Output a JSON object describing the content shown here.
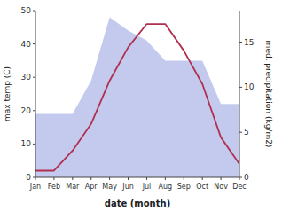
{
  "chart_data": {
    "type": "line",
    "categories": [
      "Jan",
      "Feb",
      "Mar",
      "Apr",
      "May",
      "Jun",
      "Jul",
      "Aug",
      "Sep",
      "Oct",
      "Nov",
      "Dec"
    ],
    "series": [
      {
        "type": "area",
        "color": "#b0b8e8",
        "values": [
          19,
          19,
          19,
          29,
          48,
          44,
          41,
          35,
          35,
          35,
          22,
          22
        ]
      },
      {
        "type": "line",
        "color": "#b03050",
        "values": [
          2,
          2,
          8,
          16,
          29,
          39,
          46,
          46,
          38,
          28,
          12,
          4
        ]
      }
    ],
    "ylim": [
      0,
      50
    ],
    "yticks": [
      0,
      10,
      20,
      30,
      40,
      50
    ],
    "y2lim": [
      0,
      18.5
    ],
    "y2ticks": [
      0,
      5,
      10,
      15
    ],
    "xlabel": "date (month)",
    "ylabel": "max temp (C)",
    "y2label": "med. precipitation (kg/m2)",
    "grid": false
  }
}
